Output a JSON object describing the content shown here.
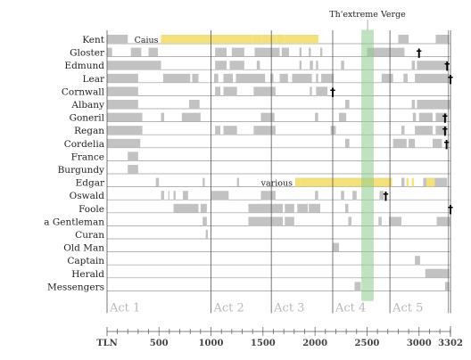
{
  "chart_data": {
    "type": "timeline",
    "title": "",
    "xlabel": "TLN",
    "x_range": [
      1,
      3302
    ],
    "x_ticks": [
      500,
      1000,
      1500,
      2000,
      2500,
      3000
    ],
    "x_end_label": "3302",
    "characters": [
      "Kent",
      "Gloster",
      "Edmund",
      "Lear",
      "Cornwall",
      "Albany",
      "Goneril",
      "Regan",
      "Cordelia",
      "France",
      "Burgundy",
      "Edgar",
      "Oswald",
      "Foole",
      "a Gentleman",
      "Curan",
      "Old Man",
      "Captain",
      "Herald",
      "Messengers"
    ],
    "acts": [
      {
        "label": "Act 1",
        "start": 1
      },
      {
        "label": "Act 2",
        "start": 1000
      },
      {
        "label": "Act 3",
        "start": 1580
      },
      {
        "label": "Act 4",
        "start": 2170
      },
      {
        "label": "Act 5",
        "start": 2720
      }
    ],
    "act_end": 3302,
    "highlight": {
      "label": "Th'extreme Verge",
      "start": 2450,
      "end": 2560
    },
    "segments": [
      [
        [
          1,
          200
        ],
        [
          520,
          1000
        ],
        [
          1010,
          1390
        ],
        [
          1410,
          1480
        ],
        [
          1500,
          1560
        ],
        [
          1590,
          1620
        ],
        [
          1640,
          1700
        ],
        [
          1720,
          2030
        ],
        [
          2800,
          2900
        ],
        [
          3160,
          3290
        ]
      ],
      [
        [
          1,
          50
        ],
        [
          230,
          330
        ],
        [
          400,
          490
        ],
        [
          1040,
          1150
        ],
        [
          1200,
          1320
        ],
        [
          1420,
          1660
        ],
        [
          1680,
          1750
        ],
        [
          1850,
          1870
        ],
        [
          1940,
          1960
        ],
        [
          2050,
          2070
        ],
        [
          2500,
          2860
        ]
      ],
      [
        [
          1,
          520
        ],
        [
          1040,
          1150
        ],
        [
          1180,
          1320
        ],
        [
          1440,
          1470
        ],
        [
          1850,
          1870
        ],
        [
          1950,
          1980
        ],
        [
          2010,
          2030
        ],
        [
          2250,
          2280
        ],
        [
          2930,
          2960
        ],
        [
          2980,
          3270
        ]
      ],
      [
        [
          1,
          300
        ],
        [
          540,
          800
        ],
        [
          820,
          880
        ],
        [
          1030,
          1070
        ],
        [
          1120,
          1210
        ],
        [
          1240,
          1520
        ],
        [
          1570,
          1600
        ],
        [
          1660,
          1740
        ],
        [
          1780,
          1970
        ],
        [
          2010,
          2030
        ],
        [
          2060,
          2180
        ],
        [
          2640,
          2750
        ],
        [
          2850,
          2890
        ],
        [
          2960,
          3290
        ]
      ],
      [
        [
          1,
          300
        ],
        [
          1040,
          1090
        ],
        [
          1120,
          1250
        ],
        [
          1410,
          1620
        ],
        [
          1950,
          1970
        ],
        [
          2010,
          2120
        ]
      ],
      [
        [
          1,
          300
        ],
        [
          790,
          890
        ],
        [
          2290,
          2330
        ],
        [
          2930,
          2960
        ],
        [
          2980,
          3300
        ]
      ],
      [
        [
          1,
          340
        ],
        [
          520,
          550
        ],
        [
          720,
          900
        ],
        [
          1480,
          1610
        ],
        [
          2000,
          2030
        ],
        [
          2230,
          2300
        ],
        [
          2940,
          2970
        ],
        [
          3000,
          3130
        ],
        [
          3160,
          3270
        ]
      ],
      [
        [
          1,
          340
        ],
        [
          1040,
          1090
        ],
        [
          1120,
          1250
        ],
        [
          1410,
          1620
        ],
        [
          2150,
          2200
        ],
        [
          2830,
          2860
        ],
        [
          2960,
          3130
        ],
        [
          3160,
          3270
        ]
      ],
      [
        [
          1,
          320
        ],
        [
          2290,
          2330
        ],
        [
          2750,
          2880
        ],
        [
          2900,
          2960
        ],
        [
          3130,
          3220
        ]
      ],
      [
        [
          200,
          300
        ]
      ],
      [
        [
          200,
          300
        ]
      ],
      [
        [
          470,
          500
        ],
        [
          920,
          940
        ],
        [
          1250,
          1270
        ],
        [
          1810,
          1850
        ],
        [
          1860,
          2740
        ],
        [
          2830,
          2860
        ],
        [
          2880,
          2890
        ],
        [
          3040,
          3270
        ]
      ],
      [
        [
          520,
          550
        ],
        [
          590,
          600
        ],
        [
          640,
          660
        ],
        [
          730,
          780
        ],
        [
          1000,
          1170
        ],
        [
          1480,
          1620
        ],
        [
          2000,
          2030
        ],
        [
          2250,
          2280
        ],
        [
          2360,
          2400
        ],
        [
          2620,
          2660
        ]
      ],
      [
        [
          640,
          880
        ],
        [
          900,
          960
        ],
        [
          1360,
          1690
        ],
        [
          1710,
          1800
        ],
        [
          1830,
          1930
        ],
        [
          1940,
          2050
        ],
        [
          2290,
          2320
        ]
      ],
      [
        [
          920,
          960
        ],
        [
          1360,
          1690
        ],
        [
          1710,
          1800
        ],
        [
          2320,
          2350
        ],
        [
          2610,
          2640
        ],
        [
          2710,
          2830
        ],
        [
          3170,
          3300
        ]
      ],
      [
        [
          950,
          970
        ]
      ],
      [
        [
          2170,
          2230
        ]
      ],
      [
        [
          2960,
          3010
        ]
      ],
      [
        [
          3060,
          3290
        ]
      ],
      [
        [
          2380,
          2440
        ],
        [
          3250,
          3290
        ]
      ]
    ],
    "daggers": [
      {
        "character": "Gloster",
        "x": 3000
      },
      {
        "character": "Edmund",
        "x": 3270
      },
      {
        "character": "Lear",
        "x": 3302
      },
      {
        "character": "Cornwall",
        "x": 2170
      },
      {
        "character": "Goneril",
        "x": 3250
      },
      {
        "character": "Regan",
        "x": 3250
      },
      {
        "character": "Cordelia",
        "x": 3265
      },
      {
        "character": "Oswald",
        "x": 2680
      },
      {
        "character": "Foole",
        "x": 3302
      }
    ],
    "speech_highlights": [
      {
        "character": "Kent",
        "label": "Caius",
        "start": 520,
        "end": 2030
      },
      {
        "character": "Edgar",
        "label": "various",
        "start": 1810,
        "end": 2740
      },
      {
        "character": "Edgar",
        "label": "",
        "start": 2880,
        "end": 2900
      },
      {
        "character": "Edgar",
        "label": "",
        "start": 2930,
        "end": 2950
      },
      {
        "character": "Edgar",
        "label": "",
        "start": 3070,
        "end": 3150
      }
    ],
    "colors": {
      "segment": "#c2c2c2",
      "row_line": "#9a9a9a",
      "act_line": "#555555",
      "act_label": "#b8b8b8",
      "highlight_fill": "#8fcc8f",
      "speech_highlight": "#f5e27a"
    }
  }
}
